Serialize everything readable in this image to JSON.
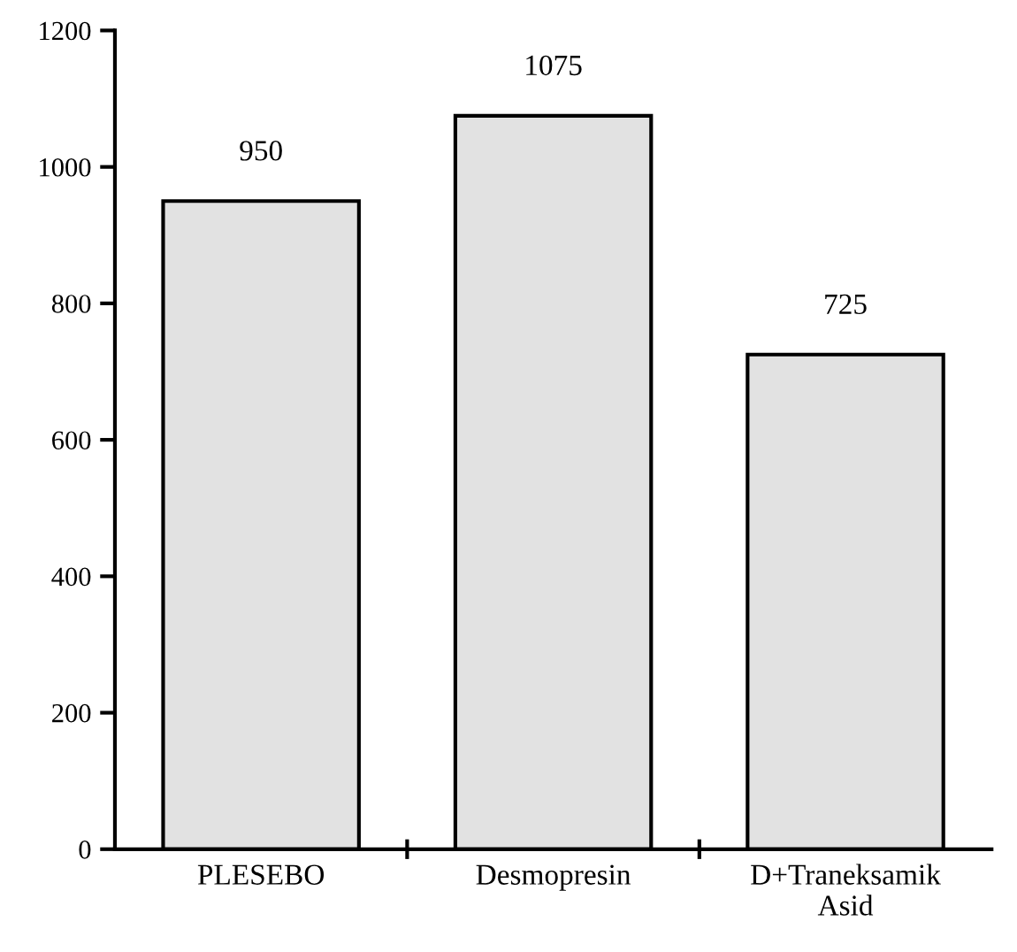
{
  "chart_data": {
    "type": "bar",
    "categories": [
      "PLESEBO",
      "Desmopresin",
      "D+Traneksamik\nAsid"
    ],
    "values": [
      950,
      1075,
      725
    ],
    "color": "#e2e2e2",
    "ylim": [
      0,
      1200
    ],
    "yticks": [
      0,
      200,
      400,
      600,
      800,
      1000,
      1200
    ],
    "data_labels": true,
    "grid": false,
    "legend": false
  }
}
